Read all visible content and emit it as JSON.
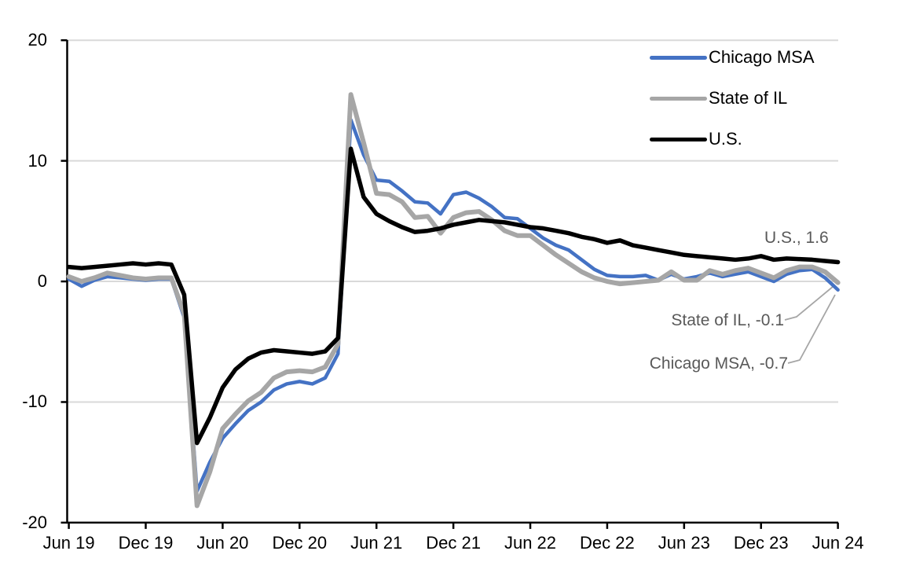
{
  "chart_data": {
    "type": "line",
    "title": "",
    "x_unit": "month",
    "x": [
      "Jun 2019",
      "Jul 2019",
      "Aug 2019",
      "Sep 2019",
      "Oct 2019",
      "Nov 2019",
      "Dec 2019",
      "Jan 2020",
      "Feb 2020",
      "Mar 2020",
      "Apr 2020",
      "May 2020",
      "Jun 2020",
      "Jul 2020",
      "Aug 2020",
      "Sep 2020",
      "Oct 2020",
      "Nov 2020",
      "Dec 2020",
      "Jan 2021",
      "Feb 2021",
      "Mar 2021",
      "Apr 2021",
      "May 2021",
      "Jun 2021",
      "Jul 2021",
      "Aug 2021",
      "Sep 2021",
      "Oct 2021",
      "Nov 2021",
      "Dec 2021",
      "Jan 2022",
      "Feb 2022",
      "Mar 2022",
      "Apr 2022",
      "May 2022",
      "Jun 2022",
      "Jul 2022",
      "Aug 2022",
      "Sep 2022",
      "Oct 2022",
      "Nov 2022",
      "Dec 2022",
      "Jan 2023",
      "Feb 2023",
      "Mar 2023",
      "Apr 2023",
      "May 2023",
      "Jun 2023",
      "Jul 2023",
      "Aug 2023",
      "Sep 2023",
      "Oct 2023",
      "Nov 2023",
      "Dec 2023",
      "Jan 2024",
      "Feb 2024",
      "Mar 2024",
      "Apr 2024",
      "May 2024",
      "Jun 2024"
    ],
    "x_tick_labels": [
      "Jun 19",
      "Dec 19",
      "Jun 20",
      "Dec 20",
      "Jun 21",
      "Dec 21",
      "Jun 22",
      "Dec 22",
      "Jun 23",
      "Dec 23",
      "Jun 24"
    ],
    "y_ticks": [
      -20,
      -10,
      0,
      10,
      20
    ],
    "ylim": [
      -20,
      20
    ],
    "grid": "horizontal",
    "gridline_color": "#D9D9D9",
    "axis_color": "#000000",
    "legend_position": "top-right",
    "annotation_text_color": "#595959",
    "leader_line_color": "#A6A6A6",
    "series": [
      {
        "name": "Chicago MSA",
        "color": "#4472C4",
        "width": 4.5,
        "values": [
          0.2,
          -0.4,
          0.1,
          0.4,
          0.3,
          0.2,
          0.1,
          0.2,
          0.2,
          -3.0,
          -17.4,
          -15.0,
          -13.0,
          -11.8,
          -10.7,
          -10.0,
          -9.0,
          -8.5,
          -8.3,
          -8.5,
          -8.0,
          -6.0,
          13.4,
          10.5,
          8.4,
          8.3,
          7.5,
          6.6,
          6.5,
          5.6,
          7.2,
          7.4,
          6.9,
          6.2,
          5.3,
          5.2,
          4.4,
          3.6,
          3.0,
          2.6,
          1.8,
          1.0,
          0.5,
          0.4,
          0.4,
          0.5,
          0.1,
          0.6,
          0.2,
          0.4,
          0.7,
          0.4,
          0.6,
          0.8,
          0.4,
          0.0,
          0.6,
          0.9,
          1.0,
          0.3,
          -0.7
        ]
      },
      {
        "name": "State of IL",
        "color": "#A6A6A6",
        "width": 6,
        "values": [
          0.4,
          0.0,
          0.3,
          0.7,
          0.5,
          0.3,
          0.2,
          0.3,
          0.3,
          -2.7,
          -18.6,
          -15.8,
          -12.2,
          -11.0,
          -9.9,
          -9.2,
          -8.0,
          -7.5,
          -7.4,
          -7.5,
          -7.1,
          -5.2,
          15.5,
          11.5,
          7.3,
          7.2,
          6.6,
          5.3,
          5.4,
          4.0,
          5.3,
          5.7,
          5.8,
          5.1,
          4.2,
          3.8,
          3.8,
          3.0,
          2.2,
          1.5,
          0.8,
          0.3,
          0.0,
          -0.2,
          -0.1,
          0.0,
          0.1,
          0.8,
          0.1,
          0.1,
          0.9,
          0.6,
          0.9,
          1.1,
          0.7,
          0.3,
          0.9,
          1.2,
          1.2,
          0.8,
          -0.1
        ]
      },
      {
        "name": "U.S.",
        "color": "#000000",
        "width": 5.5,
        "values": [
          1.2,
          1.1,
          1.2,
          1.3,
          1.4,
          1.5,
          1.4,
          1.5,
          1.4,
          -1.1,
          -13.4,
          -11.3,
          -8.8,
          -7.3,
          -6.4,
          -5.9,
          -5.7,
          -5.8,
          -5.9,
          -6.0,
          -5.8,
          -4.7,
          11.0,
          7.0,
          5.6,
          5.0,
          4.5,
          4.1,
          4.2,
          4.4,
          4.7,
          4.9,
          5.1,
          5.0,
          4.9,
          4.7,
          4.5,
          4.4,
          4.2,
          4.0,
          3.7,
          3.5,
          3.2,
          3.4,
          3.0,
          2.8,
          2.6,
          2.4,
          2.2,
          2.1,
          2.0,
          1.9,
          1.8,
          1.9,
          2.1,
          1.8,
          1.9,
          1.85,
          1.8,
          1.7,
          1.6
        ]
      }
    ],
    "annotations": [
      {
        "text": "U.S., 1.6",
        "series": "U.S.",
        "value": 1.6
      },
      {
        "text": "State of IL, -0.1",
        "series": "State of IL",
        "value": -0.1
      },
      {
        "text": "Chicago MSA, -0.7",
        "series": "Chicago MSA",
        "value": -0.7
      }
    ]
  }
}
